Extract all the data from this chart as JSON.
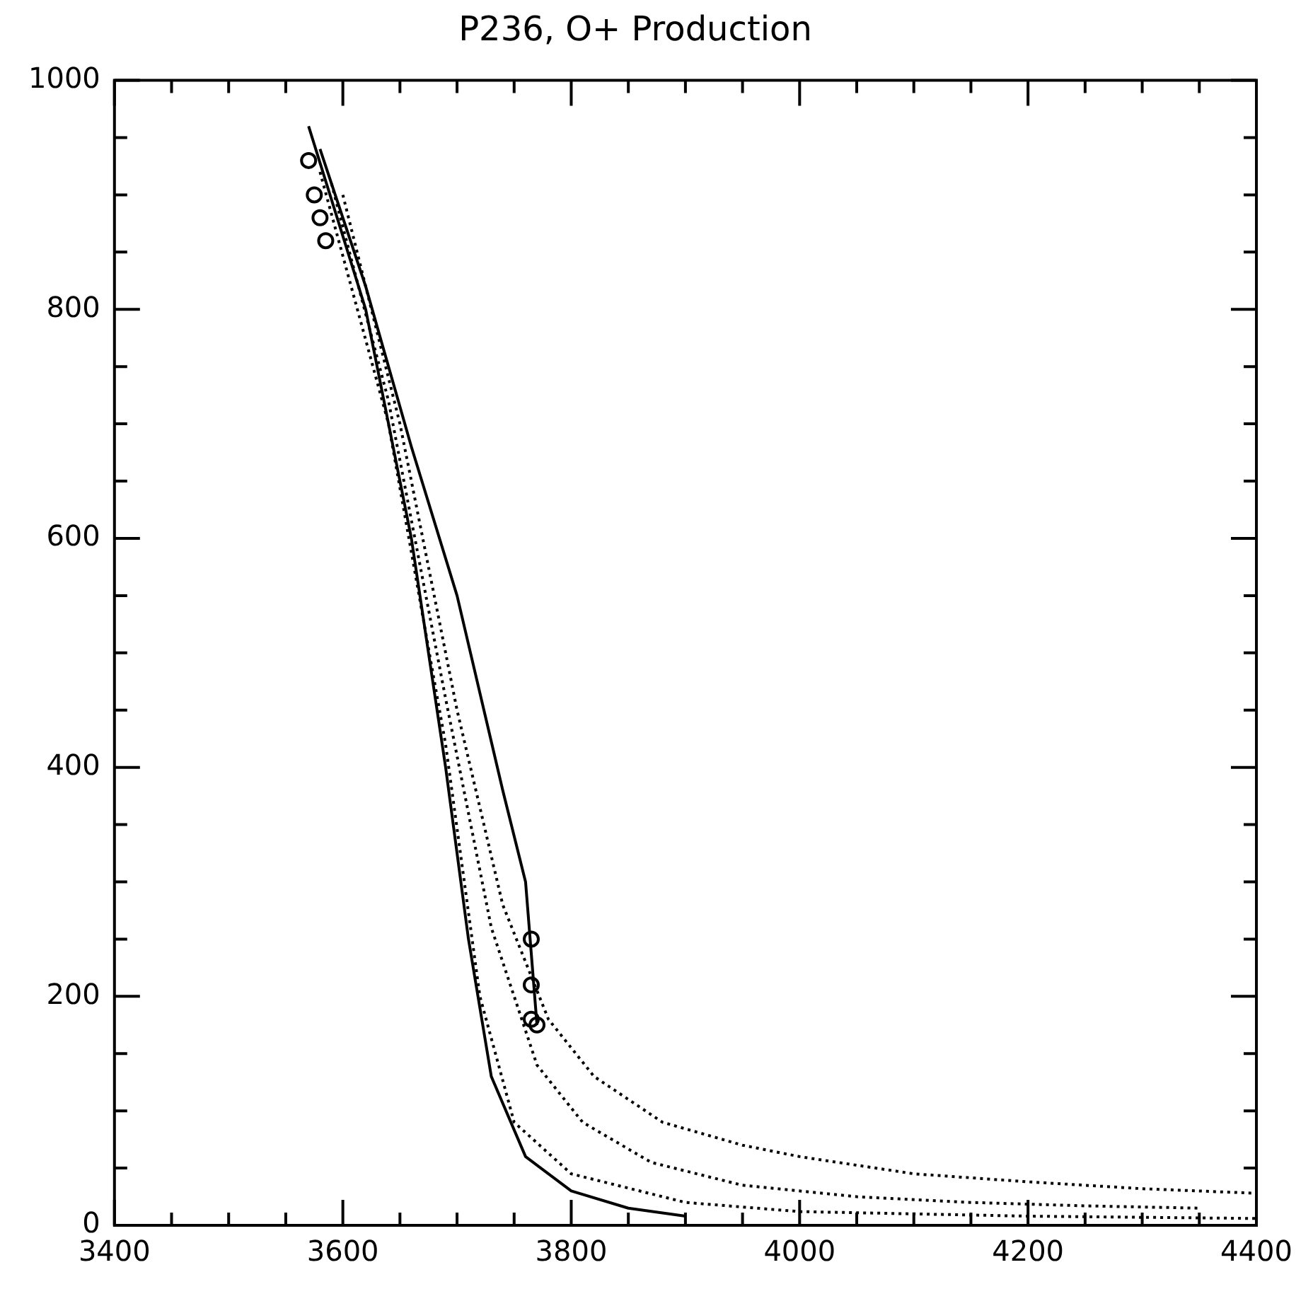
{
  "chart_data": {
    "type": "line",
    "title": "P236, O+ Production",
    "xlim": [
      3400,
      4400
    ],
    "xticks": [
      3400,
      3600,
      3800,
      4000,
      4200,
      4400
    ],
    "ylim": [
      0,
      1000
    ],
    "yticks": [
      0,
      200,
      400,
      600,
      800,
      1000
    ],
    "grid": false,
    "legend": false,
    "series": [
      {
        "color": "#000000",
        "line_style": "solid",
        "marker": "none",
        "x": [
          3570,
          3620,
          3660,
          3690,
          3710,
          3730,
          3760,
          3800,
          3850,
          3900
        ],
        "values": [
          960,
          800,
          600,
          400,
          250,
          130,
          60,
          30,
          15,
          8
        ]
      },
      {
        "color": "#000000",
        "line_style": "solid",
        "marker": "none",
        "x": [
          3580,
          3620,
          3660,
          3700,
          3740,
          3760,
          3770
        ],
        "values": [
          940,
          820,
          680,
          550,
          380,
          300,
          175
        ]
      },
      {
        "color": "#000000",
        "line_style": "dotted",
        "marker": "none",
        "x": [
          3580,
          3640,
          3690,
          3720,
          3750,
          3800,
          3900,
          4000,
          4100,
          4200,
          4300,
          4400
        ],
        "values": [
          920,
          700,
          420,
          200,
          90,
          45,
          20,
          12,
          10,
          8,
          7,
          6
        ]
      },
      {
        "color": "#000000",
        "line_style": "dotted",
        "marker": "none",
        "x": [
          3590,
          3640,
          3690,
          3730,
          3770,
          3810,
          3870,
          3950,
          4050,
          4150,
          4250,
          4350
        ],
        "values": [
          910,
          720,
          460,
          260,
          140,
          90,
          55,
          35,
          25,
          20,
          17,
          15
        ]
      },
      {
        "color": "#000000",
        "line_style": "dotted",
        "marker": "none",
        "x": [
          3600,
          3650,
          3700,
          3740,
          3780,
          3820,
          3880,
          3950,
          4000,
          4100,
          4200,
          4300,
          4400
        ],
        "values": [
          900,
          700,
          450,
          280,
          180,
          130,
          90,
          70,
          60,
          45,
          38,
          32,
          28
        ]
      },
      {
        "type": "scatter",
        "color": "#000000",
        "marker": "circle",
        "x": [
          3570,
          3575,
          3580,
          3585,
          3765,
          3765,
          3765,
          3770
        ],
        "values": [
          930,
          900,
          880,
          860,
          250,
          210,
          180,
          175
        ]
      }
    ]
  }
}
